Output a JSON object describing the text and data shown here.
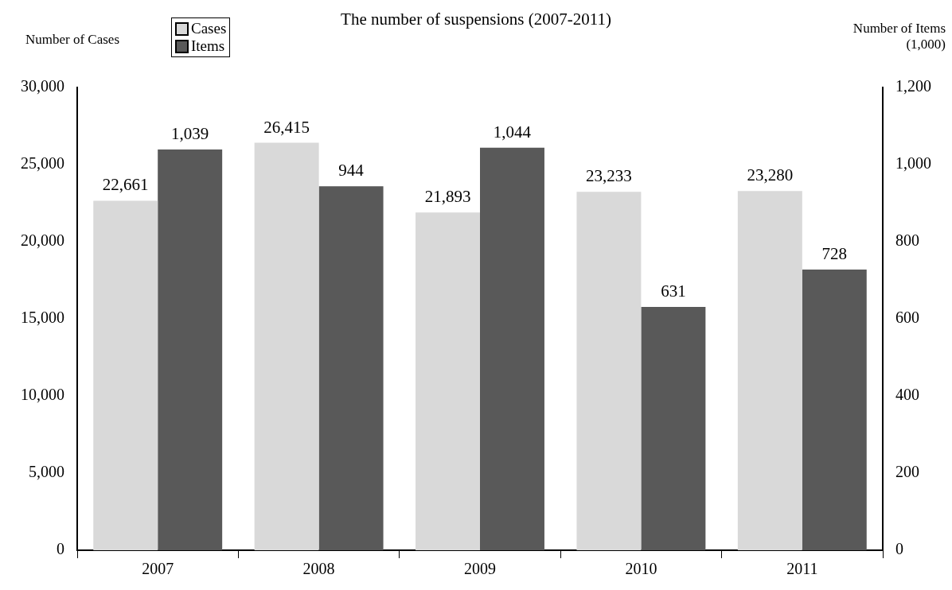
{
  "chart_data": {
    "type": "bar",
    "title": "The number of suspensions (2007-2011)",
    "ylabel": "Number of Cases",
    "y2label": "Number of Items (1,000)",
    "categories": [
      "2007",
      "2008",
      "2009",
      "2010",
      "2011"
    ],
    "series": [
      {
        "name": "Cases",
        "color": "#d9d9d9",
        "values": [
          22661,
          26415,
          21893,
          23233,
          23280
        ],
        "value_labels": [
          "22,661",
          "26,415",
          "21,893",
          "23,233",
          "23,280"
        ]
      },
      {
        "name": "Items",
        "color": "#595959",
        "axis": "y2",
        "values": [
          1039,
          944,
          1044,
          631,
          728
        ],
        "value_labels": [
          "1,039",
          "944",
          "1,044",
          "631",
          "728"
        ]
      }
    ],
    "ylim": [
      0,
      30000
    ],
    "yticks": [
      0,
      {
        "value": 5000,
        "label": "5,000"
      },
      {
        "value": 10000,
        "label": "10,000"
      },
      {
        "value": 15000,
        "label": "15,000"
      },
      {
        "value": 20000,
        "label": "20,000"
      },
      {
        "value": 25000,
        "label": "25,000"
      },
      {
        "value": 30000,
        "label": "30,000"
      }
    ],
    "y2lim": [
      0,
      1200
    ],
    "y2ticks": [
      0,
      200,
      400,
      600,
      800,
      {
        "value": 1000,
        "label": "1,000"
      },
      {
        "value": 1200,
        "label": "1,200"
      }
    ],
    "legend": "top left",
    "grid": false
  }
}
